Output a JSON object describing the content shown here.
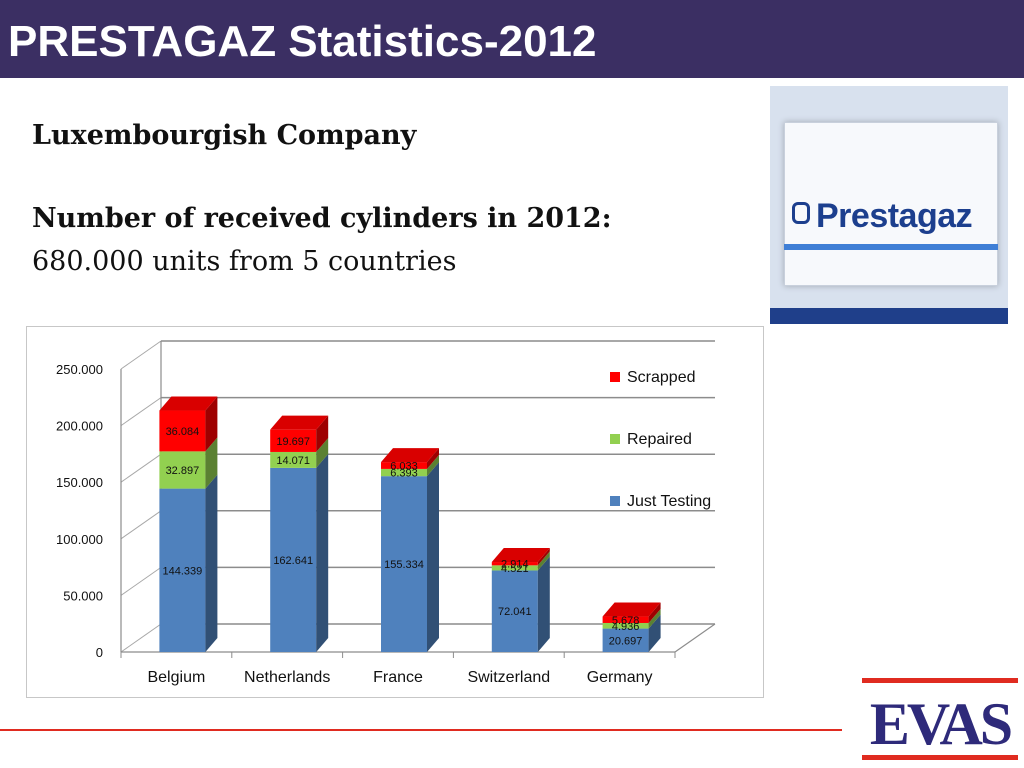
{
  "header": {
    "title": "PRESTAGAZ Statistics-2012"
  },
  "content": {
    "company": "Luxembourgish Company",
    "received_heading": "Number of received cylinders in 2012:",
    "units_text": "680.000 units from 5 countries"
  },
  "logo": {
    "name": "Prestagaz"
  },
  "footer_logo": {
    "name": "EVAS"
  },
  "colors": {
    "title_bar": "#3b2f63",
    "just_testing": "#4f81bd",
    "repaired": "#92d050",
    "scrapped": "#ff0000",
    "red_line": "#e02b20",
    "evas_blue": "#2e2a7a"
  },
  "chart_data": {
    "type": "bar",
    "stacked": true,
    "three_d": true,
    "categories": [
      "Belgium",
      "Netherlands",
      "France",
      "Switzerland",
      "Germany"
    ],
    "series": [
      {
        "name": "Just Testing",
        "values": [
          144339,
          162641,
          155334,
          72041,
          20697
        ],
        "labels": [
          "144.339",
          "162.641",
          "155.334",
          "72.041",
          "20.697"
        ]
      },
      {
        "name": "Repaired",
        "values": [
          32897,
          14071,
          6393,
          4521,
          4936
        ],
        "labels": [
          "32.897",
          "14.071",
          "6.393",
          "4.521",
          "4.936"
        ]
      },
      {
        "name": "Scrapped",
        "values": [
          36084,
          19697,
          6033,
          2914,
          5678
        ],
        "labels": [
          "36.084",
          "19.697",
          "6.033",
          "2.914",
          "5.678"
        ]
      }
    ],
    "yticks": [
      "0",
      "50.000",
      "100.000",
      "150.000",
      "200.000",
      "250.000"
    ],
    "ylim": [
      0,
      250000
    ],
    "grid": true,
    "legend_position": "right"
  }
}
